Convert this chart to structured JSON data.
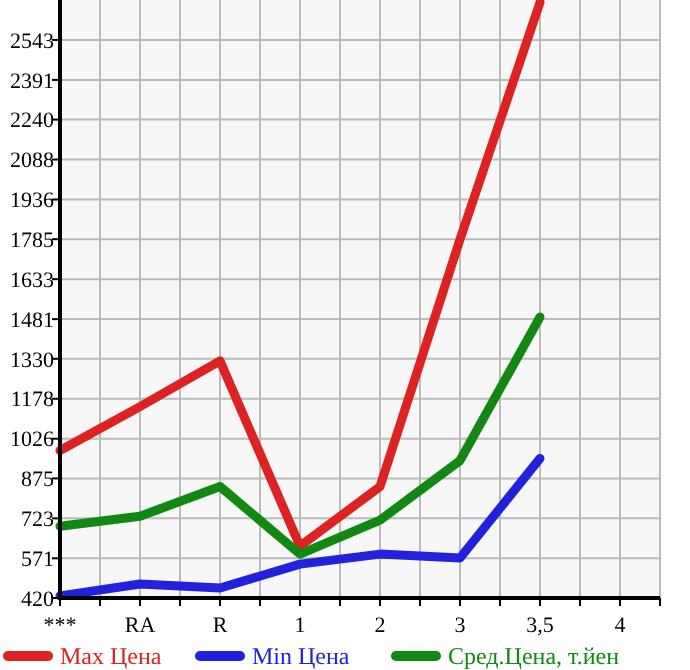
{
  "chart_data": {
    "type": "line",
    "categories": [
      "***",
      "RA",
      "R",
      "1",
      "2",
      "3",
      "3,5",
      "4"
    ],
    "series": [
      {
        "name": "Max Цена",
        "color": "#dd2222",
        "values": [
          981,
          1148,
          1322,
          617,
          844,
          1784,
          2686,
          null
        ]
      },
      {
        "name": "Min Цена",
        "color": "#2222dd",
        "values": [
          428,
          473,
          458,
          549,
          587,
          572,
          951,
          null
        ]
      },
      {
        "name": "Сред.Цена, т.йен",
        "color": "#118811",
        "values": [
          693,
          731,
          844,
          587,
          716,
          943,
          1489,
          null
        ]
      }
    ],
    "ylim": [
      420,
      2695
    ],
    "yticks": [
      420,
      571,
      723,
      875,
      1026,
      1178,
      1330,
      1481,
      1633,
      1785,
      1936,
      2088,
      2240,
      2391,
      2543
    ],
    "grid": true,
    "legend": "bottom",
    "marker": "none",
    "line_style": "solid"
  }
}
